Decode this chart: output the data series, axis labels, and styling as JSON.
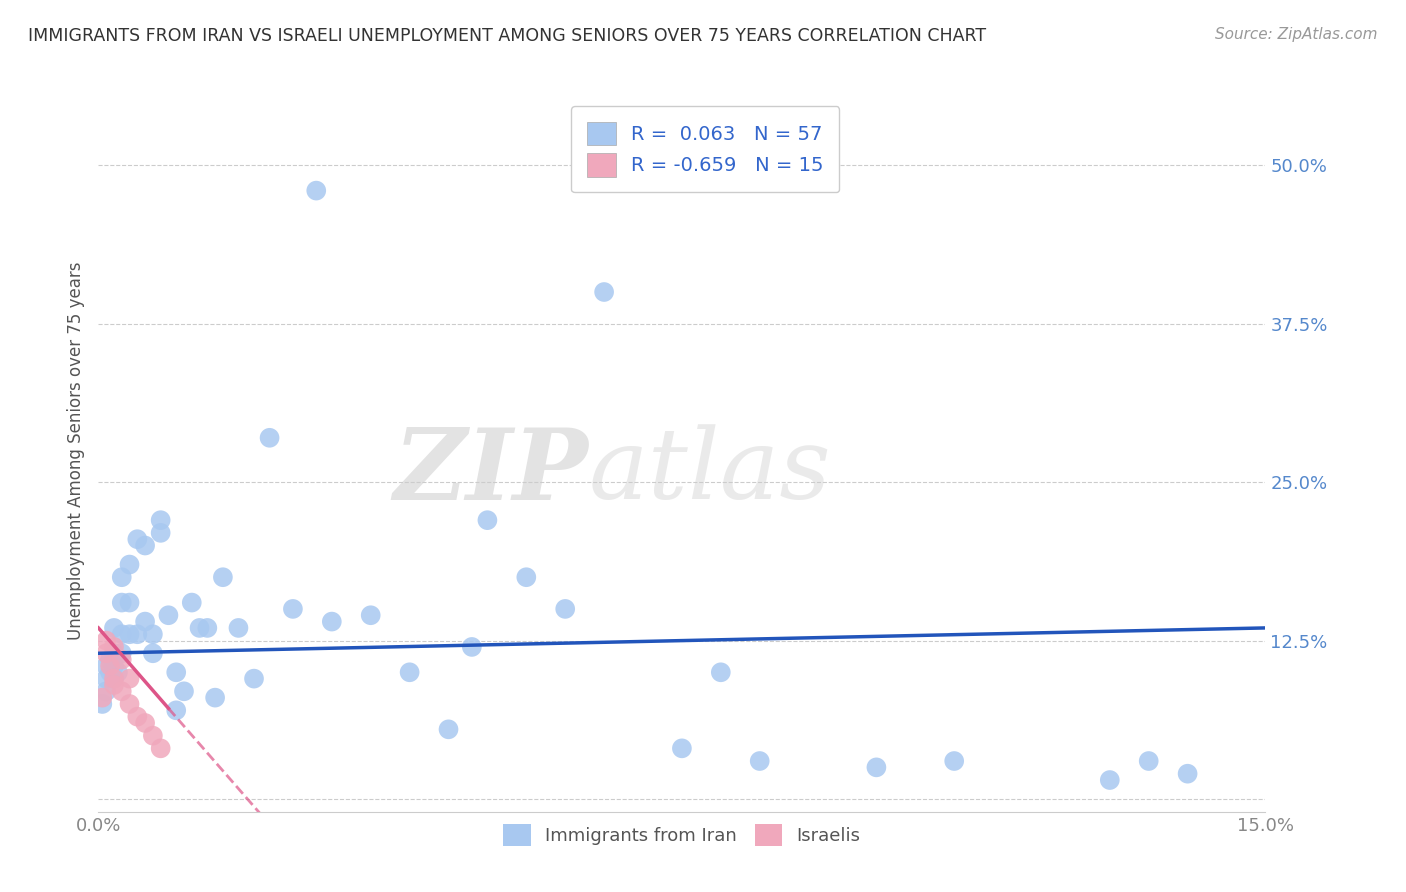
{
  "title": "IMMIGRANTS FROM IRAN VS ISRAELI UNEMPLOYMENT AMONG SENIORS OVER 75 YEARS CORRELATION CHART",
  "source": "Source: ZipAtlas.com",
  "ylabel": "Unemployment Among Seniors over 75 years",
  "xmin": 0.0,
  "xmax": 0.15,
  "ymin": -0.01,
  "ymax": 0.56,
  "yticks": [
    0.0,
    0.125,
    0.25,
    0.375,
    0.5
  ],
  "ytick_labels": [
    "",
    "12.5%",
    "25.0%",
    "37.5%",
    "50.0%"
  ],
  "xticks": [
    0.0,
    0.15
  ],
  "xtick_labels": [
    "0.0%",
    "15.0%"
  ],
  "blue_R": 0.063,
  "blue_N": 57,
  "pink_R": -0.659,
  "pink_N": 15,
  "legend_label_blue": "Immigrants from Iran",
  "legend_label_pink": "Israelis",
  "blue_color": "#a8c8f0",
  "pink_color": "#f0a8bc",
  "blue_line_color": "#2255bb",
  "pink_line_color": "#dd5588",
  "blue_line_y0": 0.115,
  "blue_line_y1": 0.135,
  "pink_line_x0": 0.0,
  "pink_line_x1": 0.022,
  "pink_line_y0": 0.135,
  "pink_line_y1": -0.02,
  "blue_scatter_x": [
    0.0005,
    0.001,
    0.001,
    0.001,
    0.0015,
    0.0015,
    0.002,
    0.002,
    0.002,
    0.002,
    0.0025,
    0.003,
    0.003,
    0.003,
    0.003,
    0.004,
    0.004,
    0.004,
    0.005,
    0.005,
    0.006,
    0.006,
    0.007,
    0.007,
    0.008,
    0.008,
    0.009,
    0.01,
    0.01,
    0.011,
    0.012,
    0.013,
    0.014,
    0.015,
    0.016,
    0.018,
    0.02,
    0.022,
    0.025,
    0.028,
    0.03,
    0.035,
    0.04,
    0.045,
    0.048,
    0.05,
    0.055,
    0.06,
    0.065,
    0.075,
    0.08,
    0.085,
    0.1,
    0.11,
    0.13,
    0.135,
    0.14
  ],
  "blue_scatter_y": [
    0.075,
    0.095,
    0.105,
    0.085,
    0.1,
    0.11,
    0.095,
    0.105,
    0.115,
    0.135,
    0.1,
    0.115,
    0.13,
    0.155,
    0.175,
    0.13,
    0.155,
    0.185,
    0.13,
    0.205,
    0.14,
    0.2,
    0.115,
    0.13,
    0.21,
    0.22,
    0.145,
    0.1,
    0.07,
    0.085,
    0.155,
    0.135,
    0.135,
    0.08,
    0.175,
    0.135,
    0.095,
    0.285,
    0.15,
    0.48,
    0.14,
    0.145,
    0.1,
    0.055,
    0.12,
    0.22,
    0.175,
    0.15,
    0.4,
    0.04,
    0.1,
    0.03,
    0.025,
    0.03,
    0.015,
    0.03,
    0.02
  ],
  "pink_scatter_x": [
    0.0005,
    0.001,
    0.001,
    0.0015,
    0.002,
    0.002,
    0.002,
    0.003,
    0.003,
    0.004,
    0.004,
    0.005,
    0.006,
    0.007,
    0.008
  ],
  "pink_scatter_y": [
    0.08,
    0.115,
    0.125,
    0.105,
    0.12,
    0.095,
    0.09,
    0.11,
    0.085,
    0.095,
    0.075,
    0.065,
    0.06,
    0.05,
    0.04
  ]
}
